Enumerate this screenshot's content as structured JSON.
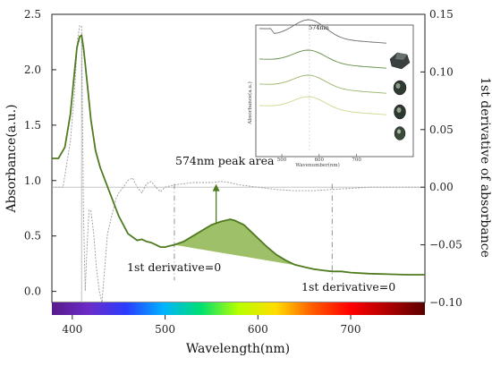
{
  "chart_data": {
    "type": "line",
    "title": "",
    "xlabel": "Wavelength(nm)",
    "ylabel": "Absorbance(a.u.)",
    "y2label": "1st derivative of absorbance",
    "xlim": [
      378,
      780
    ],
    "ylim": [
      -0.1,
      2.5
    ],
    "y2lim": [
      -0.1,
      0.15
    ],
    "x_ticks": [
      400,
      500,
      600,
      700
    ],
    "y_ticks": [
      0.0,
      0.5,
      1.0,
      1.5,
      2.0,
      2.5
    ],
    "y_tick_labels": [
      "0.0",
      "0.5",
      "1.0",
      "1.5",
      "2.0",
      "2.5"
    ],
    "y2_ticks": [
      -0.1,
      -0.05,
      0.0,
      0.05,
      0.1,
      0.15
    ],
    "y2_tick_labels": [
      "−0.10",
      "−0.05",
      "0.00",
      "0.05",
      "0.10",
      "0.15"
    ],
    "grid": false,
    "series": [
      {
        "color": "#4f7a1f",
        "style": "solid",
        "axis": "left",
        "x": [
          378,
          385,
          392,
          398,
          402,
          405,
          408,
          410,
          412,
          414,
          417,
          420,
          425,
          430,
          440,
          450,
          460,
          470,
          475,
          480,
          485,
          490,
          495,
          500,
          505,
          510,
          520,
          530,
          540,
          550,
          560,
          565,
          570,
          575,
          580,
          585,
          590,
          600,
          610,
          620,
          630,
          640,
          650,
          660,
          670,
          680,
          690,
          700,
          720,
          740,
          760,
          780
        ],
        "y": [
          1.2,
          1.2,
          1.3,
          1.6,
          1.95,
          2.2,
          2.3,
          2.31,
          2.2,
          2.05,
          1.8,
          1.55,
          1.27,
          1.12,
          0.9,
          0.68,
          0.52,
          0.46,
          0.47,
          0.45,
          0.44,
          0.42,
          0.4,
          0.4,
          0.41,
          0.42,
          0.45,
          0.5,
          0.55,
          0.6,
          0.63,
          0.64,
          0.65,
          0.64,
          0.62,
          0.6,
          0.56,
          0.48,
          0.4,
          0.33,
          0.28,
          0.24,
          0.22,
          0.2,
          0.19,
          0.18,
          0.18,
          0.17,
          0.16,
          0.155,
          0.15,
          0.15
        ]
      },
      {
        "color": "#9a9a9a",
        "style": "dashed",
        "axis": "right",
        "x": [
          378,
          390,
          398,
          402,
          406,
          408,
          410,
          412,
          414,
          416,
          418,
          420,
          423,
          426,
          429,
          432,
          435,
          438,
          441,
          444,
          447,
          450,
          455,
          460,
          465,
          470,
          475,
          480,
          485,
          490,
          495,
          500,
          510,
          520,
          530,
          540,
          550,
          560,
          570,
          575,
          580,
          590,
          600,
          610,
          620,
          640,
          660,
          680,
          700,
          720,
          740,
          760,
          780
        ],
        "y": [
          0.0,
          0.0,
          0.04,
          0.08,
          0.13,
          0.14,
          0.14,
          -0.02,
          -0.09,
          -0.05,
          -0.02,
          -0.02,
          -0.04,
          -0.07,
          -0.09,
          -0.1,
          -0.07,
          -0.04,
          -0.03,
          -0.02,
          -0.01,
          -0.005,
          0.0,
          0.006,
          0.008,
          0.0,
          -0.005,
          0.003,
          0.005,
          0.0,
          -0.004,
          0.0,
          0.002,
          0.003,
          0.004,
          0.004,
          0.004,
          0.005,
          0.004,
          0.003,
          0.002,
          0.001,
          0.0,
          -0.001,
          -0.002,
          -0.003,
          -0.003,
          -0.002,
          -0.001,
          0.0,
          0.0,
          0.0,
          0.0
        ]
      }
    ],
    "peak_area": {
      "label": "574nm peak area",
      "x_start": 510,
      "x_end": 680,
      "color": "#8cb54e"
    },
    "annotations": [
      {
        "text": "1st derivative=0",
        "x": 510
      },
      {
        "text": "1st derivative=0",
        "x": 680
      }
    ],
    "inset": {
      "title": "574nm",
      "xlabel": "Wavenumber(nm)",
      "ylabel": "Absorbance(a.u.)",
      "x_ticks": [
        "500",
        "600",
        "700"
      ],
      "marker_x": 574,
      "series_colors": [
        "#6d6d6d",
        "#5f8d47",
        "#99b56a",
        "#cfd78f"
      ]
    }
  }
}
